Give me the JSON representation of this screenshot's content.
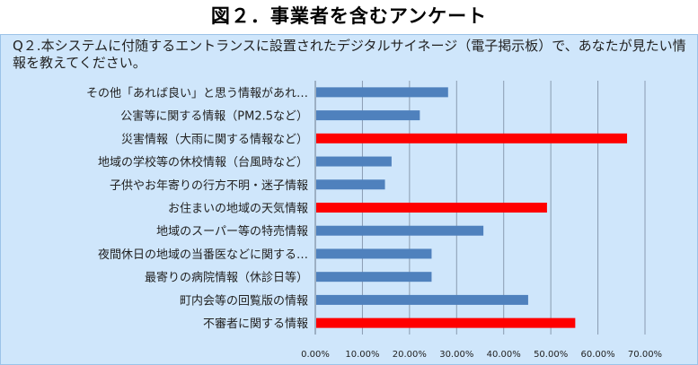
{
  "header": {
    "title": "図２．事業者を含むアンケート",
    "question": "Q２.本システムに付随するエントランスに設置されたデジタルサイネージ（電子掲示板）で、あなたが見たい情報を教えてください。"
  },
  "chart_data": {
    "type": "bar",
    "orientation": "horizontal",
    "categories": [
      "その他「あれば良い」と思う情報があれ…",
      "公害等に関する情報（PM2.5など）",
      "災害情報（大雨に関する情報など）",
      "地域の学校等の休校情報（台風時など）",
      "子供やお年寄りの行方不明・迷子情報",
      "お住まいの地域の天気情報",
      "地域のスーパー等の特売情報",
      "夜間休日の地域の当番医などに関する…",
      "最寄りの病院情報（休診日等）",
      "町内会等の回覧版の情報",
      "不審者に関する情報"
    ],
    "values": [
      28,
      22,
      66,
      16,
      14.6,
      49,
      35.5,
      24.5,
      24.5,
      45,
      55
    ],
    "bar_colors": [
      "#4f81bd",
      "#4f81bd",
      "#ff0000",
      "#4f81bd",
      "#4f81bd",
      "#ff0000",
      "#4f81bd",
      "#4f81bd",
      "#4f81bd",
      "#4f81bd",
      "#ff0000"
    ],
    "xlim": [
      0,
      70
    ],
    "xticks": [
      "0.00%",
      "10.00%",
      "20.00%",
      "30.00%",
      "40.00%",
      "50.00%",
      "60.00%",
      "70.00%"
    ],
    "grid": "vertical",
    "legend": "none"
  },
  "colors": {
    "panel_background": "#cfe6fb",
    "bar_default": "#4f81bd",
    "bar_highlight": "#ff0000",
    "gridline": "#8a9bb0"
  }
}
